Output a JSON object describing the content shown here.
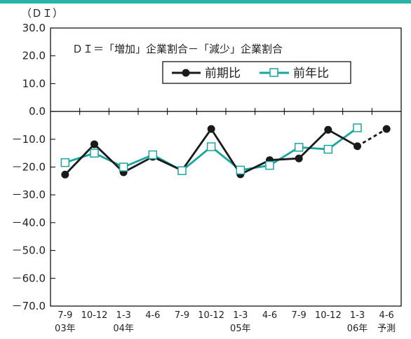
{
  "chart_data": {
    "type": "line",
    "ylabel": "（ＤＩ）",
    "ylim": [
      -70,
      30
    ],
    "yticks": [
      "30.0",
      "20.0",
      "10.0",
      "0.0",
      "－10.0",
      "－20.0",
      "－30.0",
      "－40.0",
      "－50.0",
      "－60.0",
      "－70.0"
    ],
    "ytick_values": [
      30,
      20,
      10,
      0,
      -10,
      -20,
      -30,
      -40,
      -50,
      -60,
      -70
    ],
    "categories": [
      "7-9",
      "10-12",
      "1-3",
      "4-6",
      "7-9",
      "10-12",
      "1-3",
      "4-6",
      "7-9",
      "10-12",
      "1-3",
      "4-6"
    ],
    "category_years": [
      "03年",
      "",
      "04年",
      "",
      "",
      "",
      "05年",
      "",
      "",
      "",
      "06年",
      "予測"
    ],
    "annotation": "ＤＩ＝「増加」企業割合－「減少」企業割合",
    "grid": false,
    "legend_position": "top-right",
    "accent_colors": {
      "series1": "#1a1a1a",
      "series2": "#1aa5a0",
      "frame": "#000000",
      "top_rule": "#2ab3a7"
    },
    "series": [
      {
        "name": "前期比",
        "marker": "filled-circle",
        "values": [
          -22.7,
          -11.8,
          -21.9,
          -16.3,
          -21.2,
          -6.3,
          -22.6,
          -17.5,
          -16.9,
          -6.6,
          -12.5,
          -6.3
        ],
        "forecast_from_index": 10
      },
      {
        "name": "前年比",
        "marker": "open-square",
        "values": [
          -18.4,
          -15.0,
          -20.0,
          -15.6,
          -21.3,
          -12.7,
          -21.1,
          -19.4,
          -12.9,
          -13.6,
          -5.9,
          null
        ]
      }
    ]
  }
}
